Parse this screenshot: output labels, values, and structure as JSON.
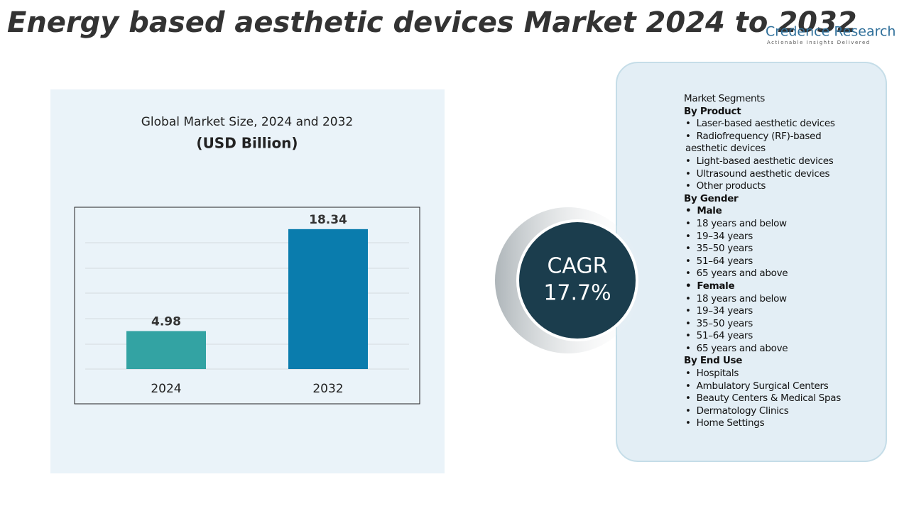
{
  "header": {
    "title": "Energy based aesthetic devices Market 2024 to 2032",
    "brand": "Credence Research",
    "tagline": "Actionable Insights Delivered"
  },
  "chart_data": {
    "type": "bar",
    "title": "Global Market Size, 2024 and 2032",
    "subtitle": "(USD Billion)",
    "categories": [
      "2024",
      "2032"
    ],
    "values": [
      4.98,
      18.34
    ],
    "colors": [
      "#33a3a3",
      "#0a7cad"
    ],
    "ylim": [
      0,
      20
    ]
  },
  "cagr": {
    "label": "CAGR",
    "value": "17.7%"
  },
  "segments": {
    "title": "Market Segments",
    "groups": [
      {
        "heading": "By Product",
        "items": [
          "Laser-based aesthetic devices",
          "Radiofrequency (RF)-based aesthetic devices",
          "Light-based aesthetic devices",
          "Ultrasound aesthetic devices",
          "Other products"
        ]
      },
      {
        "heading": "By Gender",
        "subgroups": [
          {
            "heading": "Male",
            "items": [
              "18 years and below",
              "19–34 years",
              "35–50 years",
              "51–64 years",
              "65 years and above"
            ]
          },
          {
            "heading": "Female",
            "items": [
              "18 years and below",
              "19–34 years",
              "35–50 years",
              "51–64 years",
              "65 years and above"
            ]
          }
        ]
      },
      {
        "heading": "By End Use",
        "items": [
          "Hospitals",
          "Ambulatory Surgical Centers",
          "Beauty Centers & Medical Spas",
          "Dermatology Clinics",
          "Home Settings"
        ]
      }
    ]
  }
}
